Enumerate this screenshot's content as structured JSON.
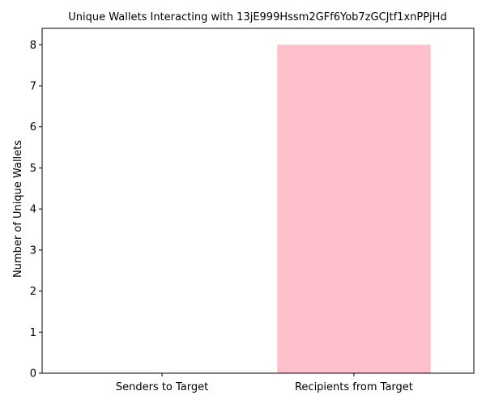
{
  "chart_data": {
    "type": "bar",
    "title": "Unique Wallets Interacting with 13jE999Hssm2GFf6Yob7zGCJtf1xnPPjHd",
    "xlabel": "",
    "ylabel": "Number of Unique Wallets",
    "categories": [
      "Senders to Target",
      "Recipients from Target"
    ],
    "values": [
      0,
      8
    ],
    "ylim": [
      0,
      8.4
    ],
    "yticks": [
      0,
      1,
      2,
      3,
      4,
      5,
      6,
      7,
      8
    ],
    "bar_color": "#ffc0cb",
    "grid": false,
    "legend": "none"
  }
}
